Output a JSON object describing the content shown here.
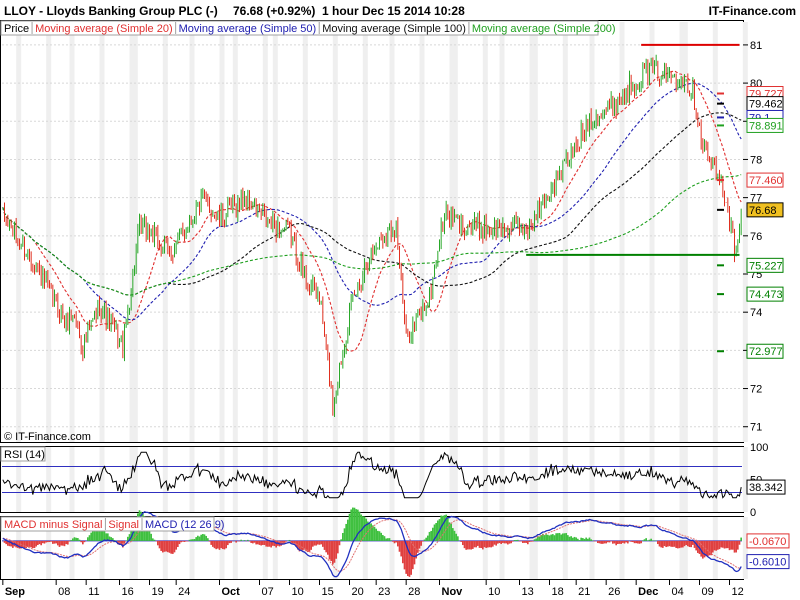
{
  "header": {
    "title": "LLOY - Lloyds Banking Group PLC (-)",
    "price": "76.68 (+0.92%)",
    "period": "1 hour",
    "timestamp": "Dec 15 2014 10:28",
    "site": "IT-Finance.com"
  },
  "watermark": "© IT-Finance.com",
  "colors": {
    "up": "#2aa82a",
    "down": "#e03020",
    "ma20": "#e03030",
    "ma50": "#2020b0",
    "ma100": "#101010",
    "ma200": "#20a020",
    "support": "#008000",
    "resistance": "#dd0000",
    "grid": "#d8d8d8",
    "axis": "#000000",
    "blueline": "#3030c0",
    "macd_pos": "#40c040",
    "macd_neg": "#e04040",
    "macd_line": "#2030c0",
    "signal_line": "#e07070"
  },
  "chart_data": [
    {
      "type": "candlestick",
      "legend": [
        {
          "label": "Price",
          "color": "#000000"
        },
        {
          "label": "Moving average (Simple 20)",
          "color": "#e03030"
        },
        {
          "label": "Moving average (Simple 50)",
          "color": "#2020b0"
        },
        {
          "label": "Moving average (Simple 100)",
          "color": "#101010"
        },
        {
          "label": "Moving average (Simple 200)",
          "color": "#20a020"
        }
      ],
      "ylim": [
        70.6,
        81.6
      ],
      "y_ticks": [
        71,
        72,
        73,
        74,
        75,
        76,
        77,
        78,
        79,
        80,
        81
      ],
      "x_ticks": [
        {
          "label": "Sep",
          "i": 0
        },
        {
          "label": "08",
          "i": 32
        },
        {
          "label": "11",
          "i": 50
        },
        {
          "label": "16",
          "i": 70
        },
        {
          "label": "19",
          "i": 88
        },
        {
          "label": "24",
          "i": 104
        },
        {
          "label": "Oct",
          "i": 130
        },
        {
          "label": "07",
          "i": 154
        },
        {
          "label": "10",
          "i": 172
        },
        {
          "label": "15",
          "i": 190
        },
        {
          "label": "20",
          "i": 208
        },
        {
          "label": "23",
          "i": 224
        },
        {
          "label": "28",
          "i": 242
        },
        {
          "label": "Nov",
          "i": 262
        },
        {
          "label": "10",
          "i": 290
        },
        {
          "label": "13",
          "i": 310
        },
        {
          "label": "18",
          "i": 328
        },
        {
          "label": "21",
          "i": 344
        },
        {
          "label": "26",
          "i": 362
        },
        {
          "label": "Dec",
          "i": 380
        },
        {
          "label": "04",
          "i": 400
        },
        {
          "label": "09",
          "i": 418
        },
        {
          "label": "12",
          "i": 436
        }
      ],
      "n_bars": 444,
      "path": [
        [
          0,
          76.5
        ],
        [
          20,
          75.2
        ],
        [
          38,
          73.7
        ],
        [
          42,
          74.0
        ],
        [
          48,
          73.1
        ],
        [
          58,
          74.2
        ],
        [
          72,
          73.1
        ],
        [
          82,
          76.2
        ],
        [
          88,
          76.1
        ],
        [
          100,
          75.5
        ],
        [
          112,
          76.4
        ],
        [
          120,
          77.0
        ],
        [
          130,
          76.4
        ],
        [
          145,
          77.0
        ],
        [
          160,
          76.3
        ],
        [
          172,
          76.1
        ],
        [
          182,
          74.8
        ],
        [
          190,
          74.4
        ],
        [
          198,
          71.6
        ],
        [
          208,
          74.0
        ],
        [
          218,
          75.3
        ],
        [
          228,
          76.0
        ],
        [
          236,
          76.3
        ],
        [
          242,
          73.3
        ],
        [
          256,
          74.4
        ],
        [
          265,
          76.6
        ],
        [
          275,
          76.3
        ],
        [
          290,
          76.2
        ],
        [
          300,
          76.2
        ],
        [
          316,
          76.2
        ],
        [
          326,
          77.0
        ],
        [
          336,
          77.8
        ],
        [
          344,
          78.3
        ],
        [
          352,
          79.1
        ],
        [
          360,
          79.2
        ],
        [
          368,
          79.5
        ],
        [
          378,
          80.0
        ],
        [
          388,
          80.4
        ],
        [
          400,
          80.2
        ],
        [
          408,
          80.2
        ],
        [
          414,
          79.8
        ],
        [
          420,
          78.4
        ],
        [
          428,
          77.6
        ],
        [
          434,
          77.0
        ],
        [
          440,
          75.4
        ],
        [
          444,
          76.68
        ]
      ],
      "last_price": 76.68,
      "price_labels": [
        {
          "value": 79.727,
          "text": "79.727",
          "color": "#e03030"
        },
        {
          "value": 79.462,
          "text": "79.462",
          "color": "#000000"
        },
        {
          "value": 79.1,
          "text": "79.1",
          "color": "#2020b0"
        },
        {
          "value": 78.891,
          "text": "78.891",
          "color": "#20a020"
        },
        {
          "value": 77.46,
          "text": "77.460",
          "color": "#e03030"
        },
        {
          "value": 76.68,
          "text": "76.68",
          "color": "#000000",
          "highlight": true
        },
        {
          "value": 75.227,
          "text": "75.227",
          "color": "#008000"
        },
        {
          "value": 74.473,
          "text": "74.473",
          "color": "#008000"
        },
        {
          "value": 72.977,
          "text": "72.977",
          "color": "#008000"
        }
      ],
      "resistance": {
        "value": 81.0,
        "from": 383,
        "to": 442
      },
      "support": {
        "value": 75.5,
        "from": 314,
        "to": 442
      }
    },
    {
      "type": "line",
      "title": "RSI (14)",
      "ylim": [
        0,
        100
      ],
      "y_ticks": [
        {
          "value": 100,
          "label": "100"
        },
        {
          "value": 50,
          "label": "50"
        },
        {
          "value": 0,
          "label": "0"
        }
      ],
      "bands": [
        70,
        30
      ],
      "last": "38.342"
    },
    {
      "type": "bar",
      "legend": [
        {
          "label": "MACD minus Signal",
          "color": "#e03030"
        },
        {
          "label": "Signal",
          "color": "#e03030"
        },
        {
          "label": "MACD (12 26 9)",
          "color": "#2020b0"
        }
      ],
      "ylim": [
        -1.05,
        0.55
      ],
      "zero_line": -0.067,
      "labels": [
        {
          "value": -0.067,
          "text": "-0.0670",
          "color": "#e03030"
        },
        {
          "value": -0.601,
          "text": "-0.6010",
          "color": "#2020b0"
        }
      ]
    }
  ]
}
